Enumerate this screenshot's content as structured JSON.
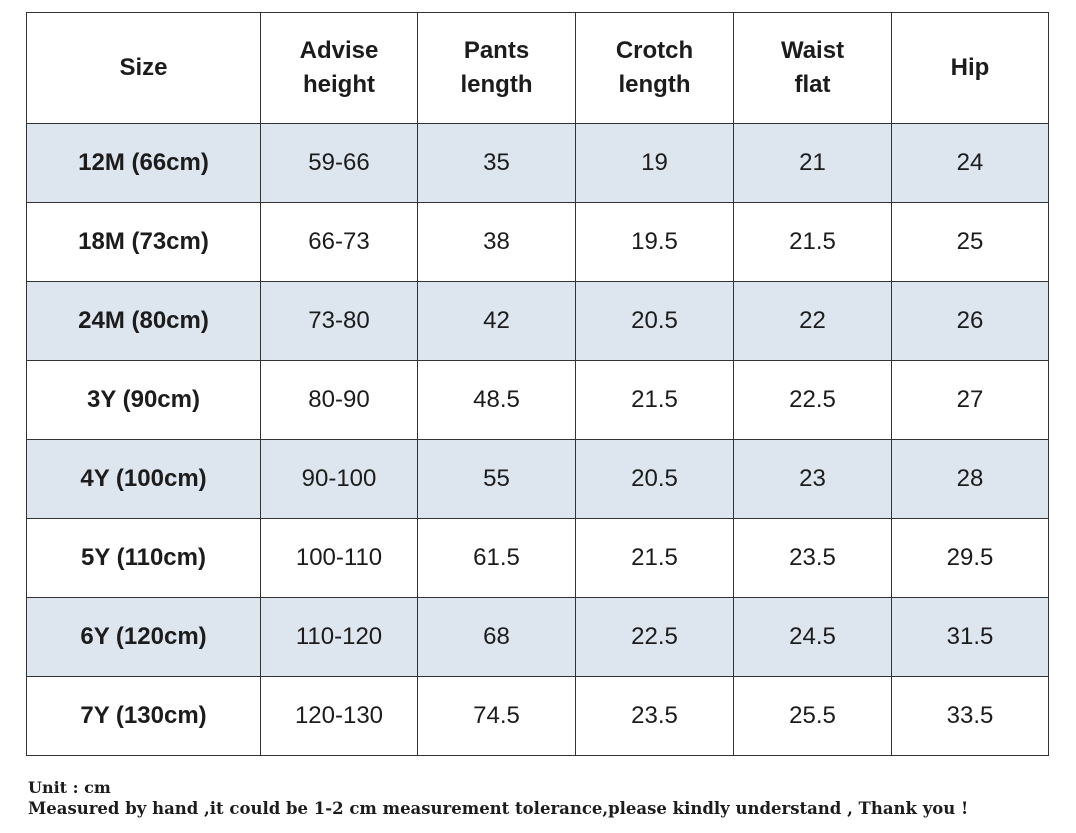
{
  "table": {
    "headers": [
      [
        "Size"
      ],
      [
        "Advise",
        "height"
      ],
      [
        "Pants",
        "length"
      ],
      [
        "Crotch",
        "length"
      ],
      [
        "Waist",
        "flat"
      ],
      [
        "Hip"
      ]
    ],
    "rows": [
      [
        "12M (66cm)",
        "59-66",
        "35",
        "19",
        "21",
        "24"
      ],
      [
        "18M (73cm)",
        "66-73",
        "38",
        "19.5",
        "21.5",
        "25"
      ],
      [
        "24M (80cm)",
        "73-80",
        "42",
        "20.5",
        "22",
        "26"
      ],
      [
        "3Y (90cm)",
        "80-90",
        "48.5",
        "21.5",
        "22.5",
        "27"
      ],
      [
        "4Y (100cm)",
        "90-100",
        "55",
        "20.5",
        "23",
        "28"
      ],
      [
        "5Y (110cm)",
        "100-110",
        "61.5",
        "21.5",
        "23.5",
        "29.5"
      ],
      [
        "6Y (120cm)",
        "110-120",
        "68",
        "22.5",
        "24.5",
        "31.5"
      ],
      [
        "7Y (130cm)",
        "120-130",
        "74.5",
        "23.5",
        "25.5",
        "33.5"
      ]
    ],
    "colors": {
      "stripe": "#dde5ef",
      "border": "#333333"
    }
  },
  "footnote": {
    "unit": "Unit : cm",
    "tolerance": "Measured by hand ,it could be 1-2 cm measurement tolerance,please kindly understand , Thank you !"
  }
}
